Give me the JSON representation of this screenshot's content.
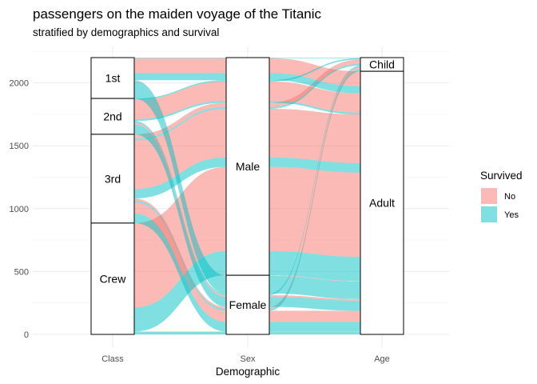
{
  "chart_data": {
    "type": "alluvial",
    "title": "passengers on the maiden voyage of the Titanic",
    "subtitle": "stratified by demographics and survival",
    "xlabel": "Demographic",
    "ylabel": "",
    "axes": [
      "Class",
      "Sex",
      "Age"
    ],
    "ylim": [
      0,
      2201
    ],
    "yticks": [
      0,
      500,
      1000,
      1500,
      2000
    ],
    "grid": true,
    "legend": {
      "title": "Survived",
      "position": "right",
      "entries": [
        {
          "label": "No",
          "color": "#F8766D"
        },
        {
          "label": "Yes",
          "color": "#00BFC4"
        }
      ]
    },
    "strata": {
      "Class": [
        {
          "label": "1st",
          "value": 325
        },
        {
          "label": "2nd",
          "value": 285
        },
        {
          "label": "3rd",
          "value": 706
        },
        {
          "label": "Crew",
          "value": 885
        }
      ],
      "Sex": [
        {
          "label": "Male",
          "value": 1731
        },
        {
          "label": "Female",
          "value": 470
        }
      ],
      "Age": [
        {
          "label": "Child",
          "value": 109
        },
        {
          "label": "Adult",
          "value": 2092
        }
      ]
    },
    "flows": [
      {
        "Class": "1st",
        "Sex": "Male",
        "Age": "Child",
        "Survived": "No",
        "n": 0
      },
      {
        "Class": "2nd",
        "Sex": "Male",
        "Age": "Child",
        "Survived": "No",
        "n": 0
      },
      {
        "Class": "3rd",
        "Sex": "Male",
        "Age": "Child",
        "Survived": "No",
        "n": 35
      },
      {
        "Class": "Crew",
        "Sex": "Male",
        "Age": "Child",
        "Survived": "No",
        "n": 0
      },
      {
        "Class": "1st",
        "Sex": "Female",
        "Age": "Child",
        "Survived": "No",
        "n": 0
      },
      {
        "Class": "2nd",
        "Sex": "Female",
        "Age": "Child",
        "Survived": "No",
        "n": 0
      },
      {
        "Class": "3rd",
        "Sex": "Female",
        "Age": "Child",
        "Survived": "No",
        "n": 17
      },
      {
        "Class": "Crew",
        "Sex": "Female",
        "Age": "Child",
        "Survived": "No",
        "n": 0
      },
      {
        "Class": "1st",
        "Sex": "Male",
        "Age": "Adult",
        "Survived": "No",
        "n": 118
      },
      {
        "Class": "2nd",
        "Sex": "Male",
        "Age": "Adult",
        "Survived": "No",
        "n": 154
      },
      {
        "Class": "3rd",
        "Sex": "Male",
        "Age": "Adult",
        "Survived": "No",
        "n": 387
      },
      {
        "Class": "Crew",
        "Sex": "Male",
        "Age": "Adult",
        "Survived": "No",
        "n": 670
      },
      {
        "Class": "1st",
        "Sex": "Female",
        "Age": "Adult",
        "Survived": "No",
        "n": 4
      },
      {
        "Class": "2nd",
        "Sex": "Female",
        "Age": "Adult",
        "Survived": "No",
        "n": 13
      },
      {
        "Class": "3rd",
        "Sex": "Female",
        "Age": "Adult",
        "Survived": "No",
        "n": 89
      },
      {
        "Class": "Crew",
        "Sex": "Female",
        "Age": "Adult",
        "Survived": "No",
        "n": 3
      },
      {
        "Class": "1st",
        "Sex": "Male",
        "Age": "Child",
        "Survived": "Yes",
        "n": 5
      },
      {
        "Class": "2nd",
        "Sex": "Male",
        "Age": "Child",
        "Survived": "Yes",
        "n": 11
      },
      {
        "Class": "3rd",
        "Sex": "Male",
        "Age": "Child",
        "Survived": "Yes",
        "n": 13
      },
      {
        "Class": "Crew",
        "Sex": "Male",
        "Age": "Child",
        "Survived": "Yes",
        "n": 0
      },
      {
        "Class": "1st",
        "Sex": "Female",
        "Age": "Child",
        "Survived": "Yes",
        "n": 1
      },
      {
        "Class": "2nd",
        "Sex": "Female",
        "Age": "Child",
        "Survived": "Yes",
        "n": 13
      },
      {
        "Class": "3rd",
        "Sex": "Female",
        "Age": "Child",
        "Survived": "Yes",
        "n": 14
      },
      {
        "Class": "Crew",
        "Sex": "Female",
        "Age": "Child",
        "Survived": "Yes",
        "n": 0
      },
      {
        "Class": "1st",
        "Sex": "Male",
        "Age": "Adult",
        "Survived": "Yes",
        "n": 57
      },
      {
        "Class": "2nd",
        "Sex": "Male",
        "Age": "Adult",
        "Survived": "Yes",
        "n": 14
      },
      {
        "Class": "3rd",
        "Sex": "Male",
        "Age": "Adult",
        "Survived": "Yes",
        "n": 75
      },
      {
        "Class": "Crew",
        "Sex": "Male",
        "Age": "Adult",
        "Survived": "Yes",
        "n": 192
      },
      {
        "Class": "1st",
        "Sex": "Female",
        "Age": "Adult",
        "Survived": "Yes",
        "n": 140
      },
      {
        "Class": "2nd",
        "Sex": "Female",
        "Age": "Adult",
        "Survived": "Yes",
        "n": 80
      },
      {
        "Class": "3rd",
        "Sex": "Female",
        "Age": "Adult",
        "Survived": "Yes",
        "n": 76
      },
      {
        "Class": "Crew",
        "Sex": "Female",
        "Age": "Adult",
        "Survived": "Yes",
        "n": 20
      }
    ]
  }
}
